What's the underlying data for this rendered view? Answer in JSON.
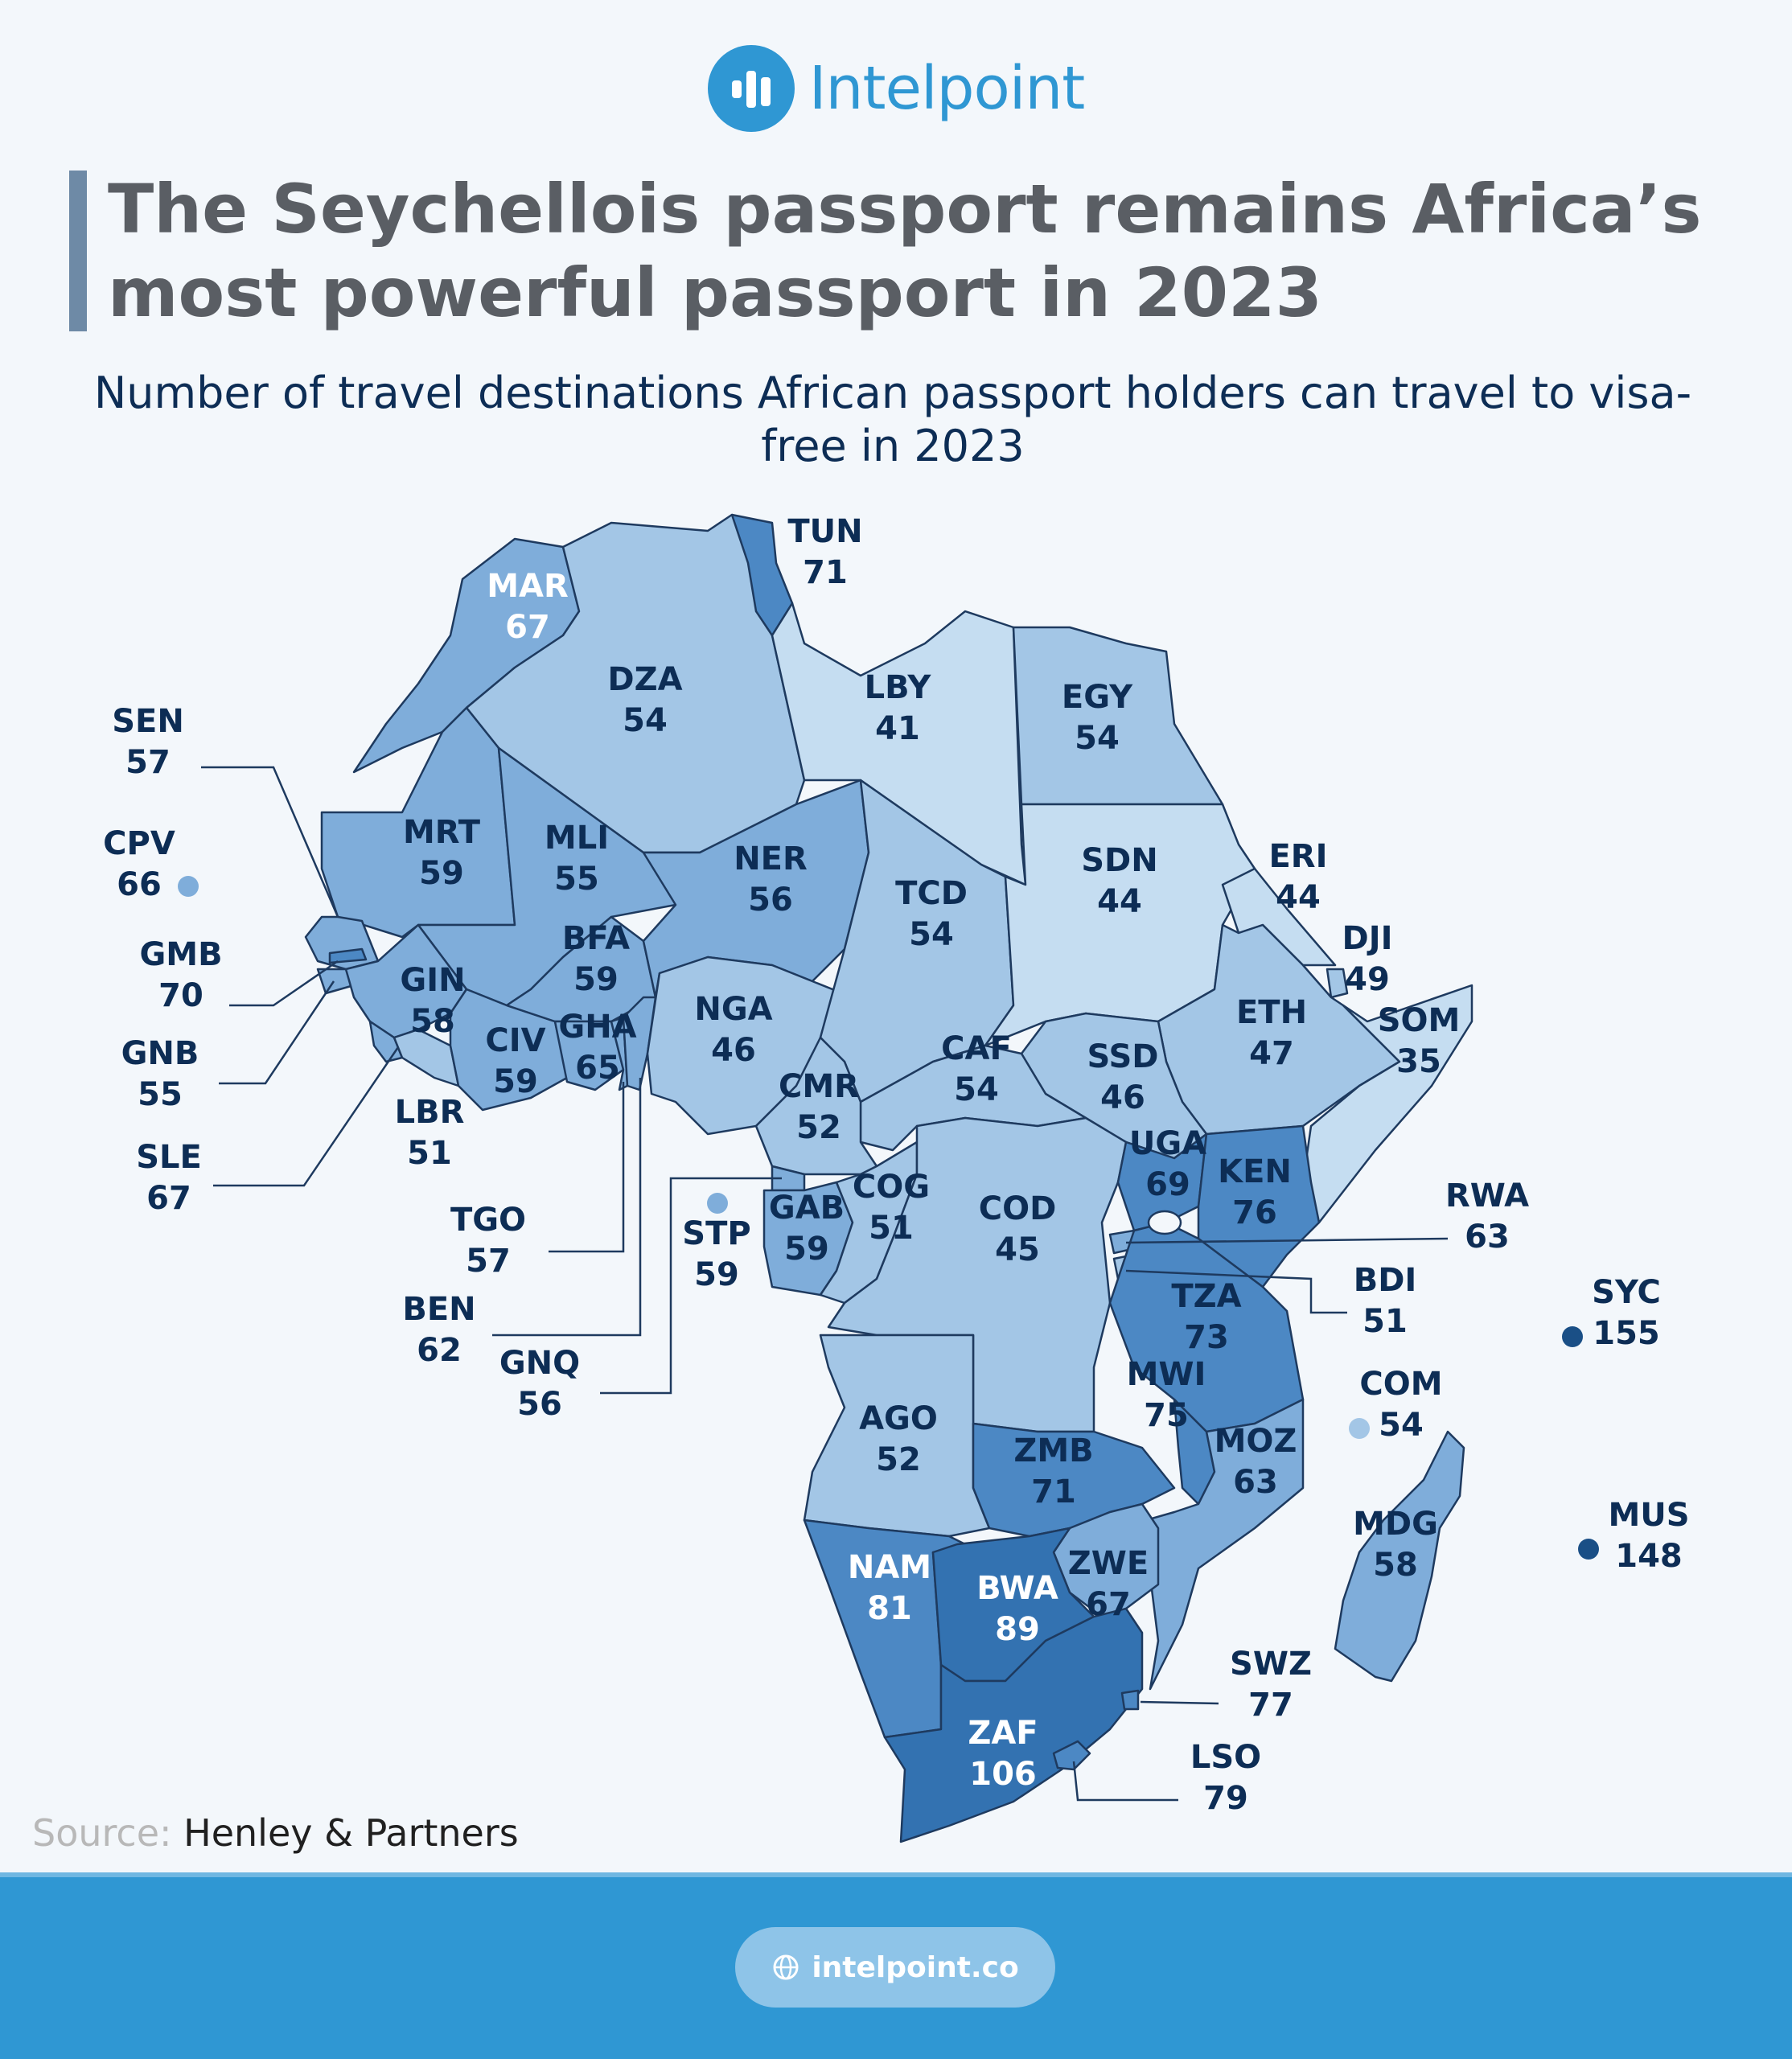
{
  "brand": {
    "name": "Intelpoint",
    "website": "intelpoint.co"
  },
  "title": "The Seychellois passport remains Africa’s most powerful passport in 2023",
  "subtitle": "Number of travel destinations African passport holders can travel to visa-free in 2023",
  "source": {
    "label": "Source:",
    "value": "Henley & Partners"
  },
  "colors": {
    "accent": "#2f97d3",
    "title_text": "#5a5e64",
    "subtitle_text": "#0d2d55",
    "border": "#1e3a5f",
    "very_low": "#c5ddf1",
    "low": "#a3c6e6",
    "mid": "#7fadda",
    "high": "#4c88c4",
    "very_high": "#3372b1",
    "small_island_high": "#1a4f86"
  },
  "map_data": {
    "type": "choropleth",
    "measure": "Number of travel destinations visa-free (2023)",
    "countries": [
      {
        "code": "TUN",
        "value": 71
      },
      {
        "code": "MAR",
        "value": 67
      },
      {
        "code": "DZA",
        "value": 54
      },
      {
        "code": "LBY",
        "value": 41
      },
      {
        "code": "EGY",
        "value": 54
      },
      {
        "code": "SEN",
        "value": 57
      },
      {
        "code": "CPV",
        "value": 66
      },
      {
        "code": "MRT",
        "value": 59
      },
      {
        "code": "MLI",
        "value": 55
      },
      {
        "code": "NER",
        "value": 56
      },
      {
        "code": "TCD",
        "value": 54
      },
      {
        "code": "SDN",
        "value": 44
      },
      {
        "code": "ERI",
        "value": 44
      },
      {
        "code": "DJI",
        "value": 49
      },
      {
        "code": "GMB",
        "value": 70
      },
      {
        "code": "BFA",
        "value": 59
      },
      {
        "code": "GIN",
        "value": 58
      },
      {
        "code": "NGA",
        "value": 46
      },
      {
        "code": "ETH",
        "value": 47
      },
      {
        "code": "SOM",
        "value": 35
      },
      {
        "code": "GNB",
        "value": 55
      },
      {
        "code": "CIV",
        "value": 59
      },
      {
        "code": "GHA",
        "value": 65
      },
      {
        "code": "CAF",
        "value": 54
      },
      {
        "code": "SSD",
        "value": 46
      },
      {
        "code": "CMR",
        "value": 52
      },
      {
        "code": "LBR",
        "value": 51
      },
      {
        "code": "SLE",
        "value": 67
      },
      {
        "code": "UGA",
        "value": 69
      },
      {
        "code": "KEN",
        "value": 76
      },
      {
        "code": "COG",
        "value": 51
      },
      {
        "code": "GAB",
        "value": 59
      },
      {
        "code": "COD",
        "value": 45
      },
      {
        "code": "RWA",
        "value": 63
      },
      {
        "code": "TGO",
        "value": 57
      },
      {
        "code": "STP",
        "value": 59
      },
      {
        "code": "BDI",
        "value": 51
      },
      {
        "code": "SYC",
        "value": 155
      },
      {
        "code": "BEN",
        "value": 62
      },
      {
        "code": "TZA",
        "value": 73
      },
      {
        "code": "GNQ",
        "value": 56
      },
      {
        "code": "COM",
        "value": 54
      },
      {
        "code": "MWI",
        "value": 75
      },
      {
        "code": "AGO",
        "value": 52
      },
      {
        "code": "ZMB",
        "value": 71
      },
      {
        "code": "MOZ",
        "value": 63
      },
      {
        "code": "MDG",
        "value": 58
      },
      {
        "code": "MUS",
        "value": 148
      },
      {
        "code": "ZWE",
        "value": 67
      },
      {
        "code": "NAM",
        "value": 81
      },
      {
        "code": "BWA",
        "value": 89
      },
      {
        "code": "SWZ",
        "value": 77
      },
      {
        "code": "ZAF",
        "value": 106
      },
      {
        "code": "LSO",
        "value": 79
      }
    ]
  }
}
